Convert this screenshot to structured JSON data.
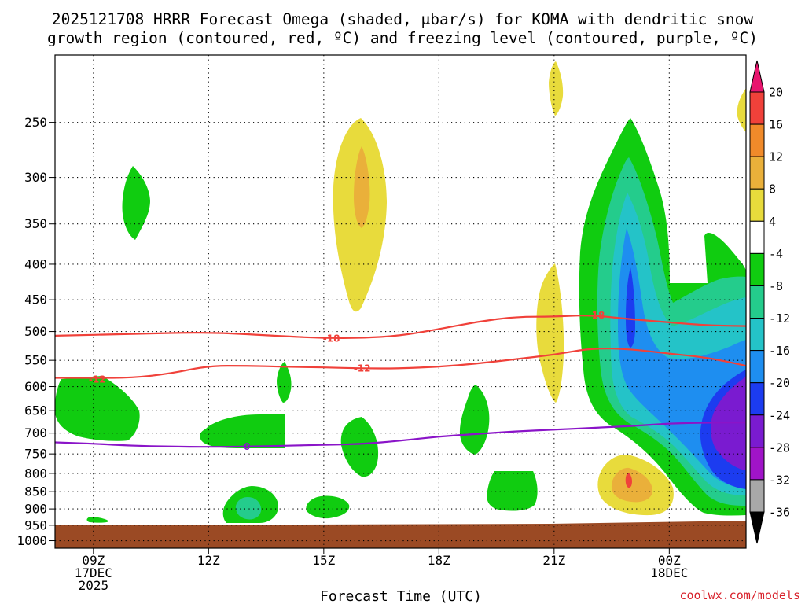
{
  "chart_data": {
    "type": "heatmap",
    "title_lines": [
      "2025121708 HRRR Forecast Omega (shaded, μbar/s) for KOMA with dendritic snow",
      "growth region (contoured, red, ºC) and freezing level (contoured, purple, ºC)"
    ],
    "xlabel": "Forecast Time (UTC)",
    "credit": "coolwx.com/models",
    "x_ticks": [
      {
        "hour": 9,
        "lines": [
          "09Z",
          "17DEC",
          "2025"
        ]
      },
      {
        "hour": 12,
        "lines": [
          "12Z"
        ]
      },
      {
        "hour": 15,
        "lines": [
          "15Z"
        ]
      },
      {
        "hour": 18,
        "lines": [
          "18Z"
        ]
      },
      {
        "hour": 21,
        "lines": [
          "21Z"
        ]
      },
      {
        "hour": 24,
        "lines": [
          "00Z",
          "18DEC"
        ]
      }
    ],
    "x_range_hours": [
      8,
      26
    ],
    "y_label_values": [
      "250",
      "300",
      "350",
      "400",
      "450",
      "500",
      "550",
      "600",
      "650",
      "700",
      "750",
      "800",
      "850",
      "900",
      "950",
      "1000"
    ],
    "y_range_hpa": [
      200,
      1025
    ],
    "colorbar": {
      "labels": [
        "20",
        "16",
        "12",
        "8",
        "4",
        "-4",
        "-8",
        "-12",
        "-16",
        "-20",
        "-24",
        "-28",
        "-32",
        "-36"
      ],
      "levels": [
        {
          "color": "#e8156e"
        },
        {
          "color": "#f0413a"
        },
        {
          "color": "#f08a2a"
        },
        {
          "color": "#eab03a"
        },
        {
          "color": "#e8db3c"
        },
        {
          "color": "#ffffff"
        },
        {
          "color": "#10cc10"
        },
        {
          "color": "#24cc8c"
        },
        {
          "color": "#24c3c8"
        },
        {
          "color": "#1e8ef0"
        },
        {
          "color": "#1c3cf0"
        },
        {
          "color": "#7a1bd0"
        },
        {
          "color": "#a014c8"
        },
        {
          "color": "#a8a8a8"
        },
        {
          "color": "#000000"
        }
      ]
    },
    "contours": [
      {
        "name": "dgz-minus18",
        "label": "-18",
        "color": "#f0413a",
        "points": [
          [
            8,
            507
          ],
          [
            10,
            504
          ],
          [
            12,
            501
          ],
          [
            14,
            508
          ],
          [
            15,
            511
          ],
          [
            16,
            511
          ],
          [
            17,
            507
          ],
          [
            18,
            496
          ],
          [
            19,
            484
          ],
          [
            20,
            476
          ],
          [
            21,
            476
          ],
          [
            21.9,
            473
          ],
          [
            23,
            480
          ],
          [
            24,
            485
          ],
          [
            25,
            490
          ],
          [
            26,
            491
          ]
        ],
        "label_positions": [
          [
            15.2,
            511
          ],
          [
            22.1,
            473
          ]
        ]
      },
      {
        "name": "dgz-minus12",
        "label": "-12",
        "color": "#f0413a",
        "points": [
          [
            8,
            583
          ],
          [
            9,
            583
          ],
          [
            10,
            583
          ],
          [
            11,
            575
          ],
          [
            12,
            560
          ],
          [
            13,
            560
          ],
          [
            14,
            562
          ],
          [
            15,
            563
          ],
          [
            16,
            565
          ],
          [
            17,
            565
          ],
          [
            18,
            562
          ],
          [
            19,
            556
          ],
          [
            20,
            548
          ],
          [
            21,
            540
          ],
          [
            22,
            528
          ],
          [
            23,
            530
          ],
          [
            24,
            538
          ],
          [
            25,
            545
          ],
          [
            26,
            560
          ]
        ],
        "label_positions": [
          [
            9.1,
            585
          ],
          [
            16.0,
            564
          ]
        ]
      },
      {
        "name": "freezing-level",
        "label": "0",
        "color": "#8a14c8",
        "points": [
          [
            8,
            722
          ],
          [
            9,
            725
          ],
          [
            10,
            730
          ],
          [
            11,
            732
          ],
          [
            12,
            733
          ],
          [
            13,
            732
          ],
          [
            14,
            730
          ],
          [
            15,
            728
          ],
          [
            16,
            726
          ],
          [
            17,
            718
          ],
          [
            18,
            708
          ],
          [
            19,
            702
          ],
          [
            20,
            696
          ],
          [
            21,
            692
          ],
          [
            22,
            688
          ],
          [
            23,
            684
          ],
          [
            24,
            678
          ],
          [
            25,
            676
          ],
          [
            26,
            676
          ]
        ],
        "label_positions": [
          [
            13.0,
            731
          ]
        ]
      }
    ]
  }
}
